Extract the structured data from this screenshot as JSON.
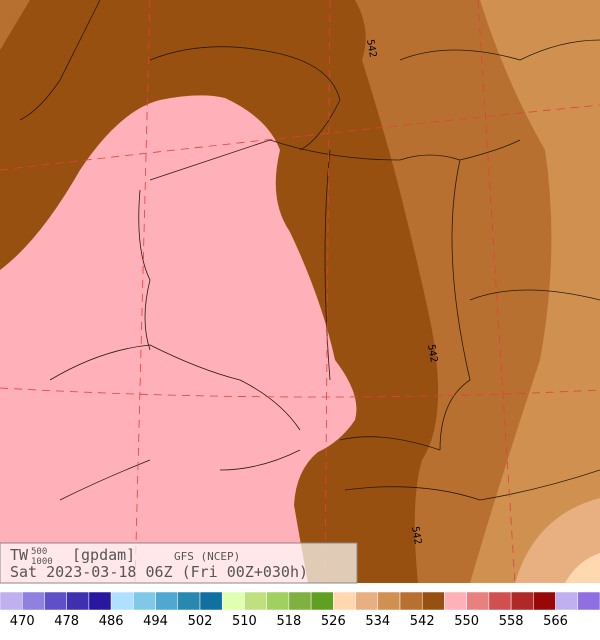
{
  "header": {
    "field": "TW",
    "level_top": "500",
    "level_bottom": "1000",
    "units": "[gpdam]",
    "model": "GFS (NCEP)",
    "valid": "Sat 2023-03-18 06Z (Fri 00Z+030h)"
  },
  "contour_labels": [
    "542",
    "542",
    "542"
  ],
  "legend": {
    "colors": [
      "#c0b0f0",
      "#9080e0",
      "#6050c8",
      "#4030b0",
      "#2818a0",
      "#b0e0ff",
      "#80c8e8",
      "#50a8d0",
      "#2888b0",
      "#1070a0",
      "#e0ffb0",
      "#c0e080",
      "#a0d060",
      "#80b040",
      "#60a020",
      "#ffd8b0",
      "#e8b080",
      "#d09050",
      "#b87030",
      "#985010",
      "#ffb0b8",
      "#e88080",
      "#d05050",
      "#b02828",
      "#980808",
      "#c0b0f0",
      "#9070e0"
    ],
    "labels": [
      470,
      478,
      486,
      494,
      502,
      510,
      518,
      526,
      534,
      542,
      550,
      558,
      566
    ]
  }
}
